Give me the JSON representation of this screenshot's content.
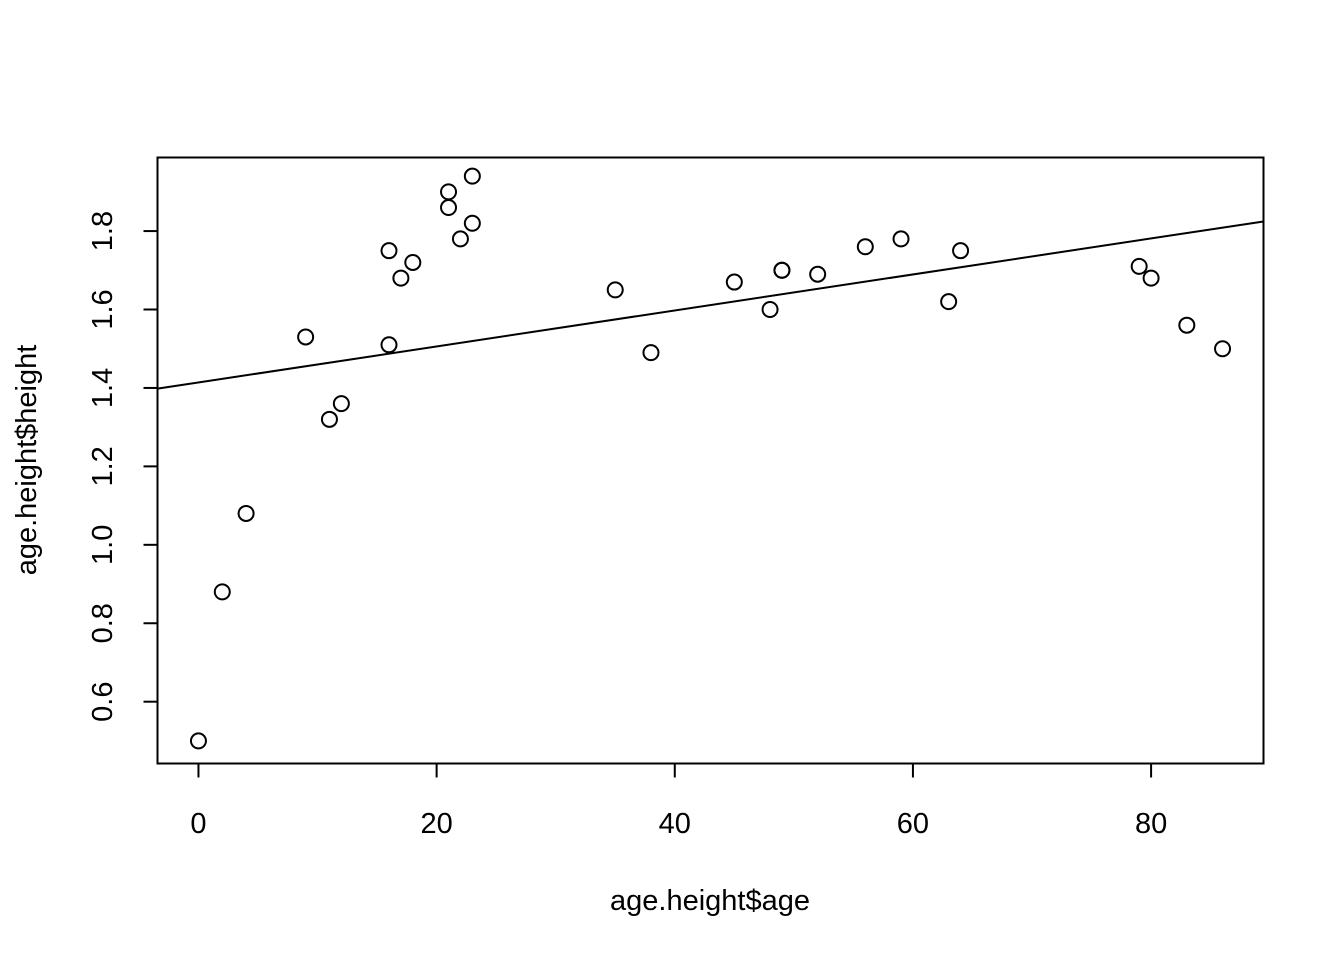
{
  "chart_data": {
    "type": "scatter",
    "title": "",
    "xlabel": "age.height$age",
    "ylabel": "age.height$height",
    "xlim": [
      -3.44,
      89.44
    ],
    "ylim": [
      0.4424,
      1.9876
    ],
    "x_ticks": [
      0,
      20,
      40,
      60,
      80
    ],
    "x_tick_labels": [
      "0",
      "20",
      "40",
      "60",
      "80"
    ],
    "y_ticks": [
      0.6,
      0.8,
      1.0,
      1.2,
      1.4,
      1.6,
      1.8
    ],
    "y_tick_labels": [
      "0.6",
      "0.8",
      "1.0",
      "1.2",
      "1.4",
      "1.6",
      "1.8"
    ],
    "grid": false,
    "marker": "open-circle",
    "series": [
      {
        "x": [
          0,
          2,
          4,
          9,
          11,
          12,
          16,
          16,
          17,
          18,
          21,
          21,
          22,
          23,
          23,
          35,
          38,
          45,
          48,
          49,
          49,
          52,
          56,
          59,
          63,
          64,
          79,
          80,
          83,
          86
        ],
        "y": [
          0.5,
          0.88,
          1.08,
          1.53,
          1.32,
          1.36,
          1.75,
          1.51,
          1.68,
          1.72,
          1.9,
          1.86,
          1.78,
          1.94,
          1.82,
          1.65,
          1.49,
          1.67,
          1.6,
          1.7,
          1.7,
          1.69,
          1.76,
          1.78,
          1.62,
          1.75,
          1.71,
          1.68,
          1.56,
          1.5
        ]
      }
    ],
    "regression_line": {
      "intercept": 1.414,
      "slope": 0.00459
    }
  }
}
